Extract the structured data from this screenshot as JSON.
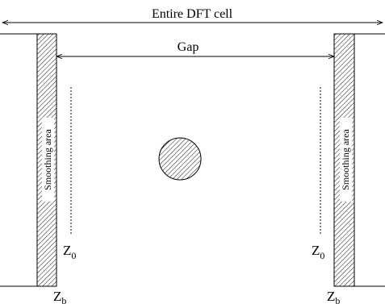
{
  "diagram": {
    "entire_label": "Entire DFT cell",
    "gap_label": "Gap",
    "smoothing_left": "Smoothing area",
    "smoothing_right": "Smoothing area",
    "z0_left": {
      "base": "Z",
      "sub": "0"
    },
    "z0_right": {
      "base": "Z",
      "sub": "0"
    },
    "zb_left": {
      "base": "Z",
      "sub": "b"
    },
    "zb_right": {
      "base": "Z",
      "sub": "b"
    }
  }
}
